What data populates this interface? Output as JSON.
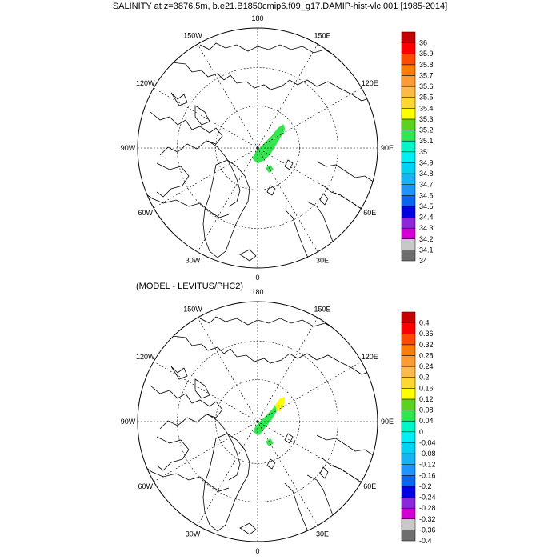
{
  "title": "SALINITY at z=3876.5m, b.e21.B1850cmip6.f09_g17.DAMIP-hist-vlc.001 [1985-2014]",
  "subtitle": "(MODEL - LEVITUS/PHC2)",
  "lon_labels": [
    "180",
    "150E",
    "120E",
    "90E",
    "60E",
    "30E",
    "0",
    "30W",
    "60W",
    "90W",
    "120W",
    "150W"
  ],
  "maps": [
    {
      "name": "salinity",
      "colorbar": {
        "colors": [
          "#6e6e6e",
          "#c8c8c8",
          "#d200d2",
          "#8c28dc",
          "#0000e6",
          "#0a64f0",
          "#1e96ff",
          "#14b4f5",
          "#00d2f5",
          "#00eef5",
          "#00f5c8",
          "#32e650",
          "#5ad21e",
          "#ffff00",
          "#ffd732",
          "#ffb946",
          "#ff9b32",
          "#ff7d00",
          "#ff4b00",
          "#ff0000",
          "#c80000"
        ],
        "labels": [
          "34",
          "34.1",
          "34.2",
          "34.3",
          "34.4",
          "34.5",
          "34.6",
          "34.7",
          "34.8",
          "34.9",
          "35",
          "35.1",
          "35.2",
          "35.3",
          "35.4",
          "35.5",
          "35.6",
          "35.7",
          "35.8",
          "35.9",
          "36"
        ]
      }
    },
    {
      "name": "difference",
      "colorbar": {
        "colors": [
          "#6e6e6e",
          "#c8c8c8",
          "#d200d2",
          "#8c28dc",
          "#0000e6",
          "#0a64f0",
          "#1e96ff",
          "#14b4f5",
          "#00d2f5",
          "#00eef5",
          "#00f5c8",
          "#32e650",
          "#5ad21e",
          "#ffff00",
          "#ffd732",
          "#ffb946",
          "#ff9b32",
          "#ff7d00",
          "#ff4b00",
          "#ff0000",
          "#c80000"
        ],
        "labels": [
          "-0.4",
          "-0.36",
          "-0.32",
          "-0.28",
          "-0.24",
          "-0.2",
          "-0.16",
          "-0.12",
          "-0.08",
          "-0.04",
          "0",
          "0.04",
          "0.08",
          "0.12",
          "0.16",
          "0.2",
          "0.24",
          "0.28",
          "0.32",
          "0.36",
          "0.4"
        ]
      }
    }
  ]
}
